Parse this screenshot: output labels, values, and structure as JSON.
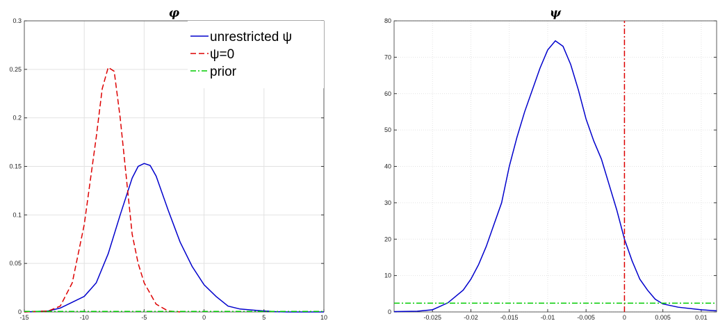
{
  "chart_data": [
    {
      "type": "line",
      "title": "φ",
      "xlim": [
        -15,
        10
      ],
      "xticks": [
        -15,
        -10,
        -5,
        0,
        5,
        10
      ],
      "ylim": [
        0,
        0.3
      ],
      "yticks": [
        0,
        0.05,
        0.1,
        0.15,
        0.2,
        0.25,
        0.3
      ],
      "grid": true,
      "legend": "upper right",
      "series": [
        {
          "name": "unrestricted ψ",
          "color": "#0000cc",
          "line_style": "solid",
          "x": [
            -15,
            -13,
            -12,
            -11,
            -10,
            -9,
            -8,
            -7,
            -6,
            -5.5,
            -5,
            -4.5,
            -4,
            -3,
            -2,
            -1,
            0,
            1,
            2,
            3,
            4,
            5,
            6,
            7,
            10
          ],
          "values": [
            0,
            0.001,
            0.004,
            0.01,
            0.016,
            0.03,
            0.06,
            0.1,
            0.138,
            0.15,
            0.153,
            0.151,
            0.14,
            0.105,
            0.072,
            0.047,
            0.028,
            0.016,
            0.006,
            0.003,
            0.002,
            0.001,
            0.0003,
            0,
            0
          ]
        },
        {
          "name": "ψ=0",
          "color": "#dd0000",
          "line_style": "dashed",
          "x": [
            -15,
            -13,
            -12,
            -11,
            -10,
            -9,
            -8.5,
            -8,
            -7.5,
            -7,
            -6.5,
            -6,
            -5.5,
            -5,
            -4,
            -3,
            -2
          ],
          "values": [
            0,
            0.001,
            0.006,
            0.03,
            0.09,
            0.18,
            0.23,
            0.252,
            0.248,
            0.2,
            0.14,
            0.08,
            0.05,
            0.03,
            0.008,
            0.001,
            0
          ]
        },
        {
          "name": "prior",
          "color": "#00cc00",
          "line_style": "dashdot",
          "x": [
            -15,
            10
          ],
          "values": [
            0.0005,
            0.0005
          ]
        }
      ]
    },
    {
      "type": "line",
      "title": "ψ",
      "xlim": [
        -0.03,
        0.012
      ],
      "xticks": [
        -0.025,
        -0.02,
        -0.015,
        -0.01,
        -0.005,
        0,
        0.005,
        0.01
      ],
      "ylim": [
        0,
        80
      ],
      "yticks": [
        0,
        10,
        20,
        30,
        40,
        50,
        60,
        70,
        80
      ],
      "grid": true,
      "series": [
        {
          "color": "#0000cc",
          "line_style": "solid",
          "x": [
            -0.03,
            -0.027,
            -0.025,
            -0.023,
            -0.021,
            -0.02,
            -0.019,
            -0.018,
            -0.017,
            -0.016,
            -0.015,
            -0.014,
            -0.013,
            -0.012,
            -0.011,
            -0.01,
            -0.009,
            -0.008,
            -0.007,
            -0.006,
            -0.005,
            -0.004,
            -0.003,
            -0.002,
            -0.001,
            0,
            0.001,
            0.002,
            0.003,
            0.004,
            0.005,
            0.007,
            0.01,
            0.012
          ],
          "values": [
            0.1,
            0.2,
            0.6,
            2.5,
            6,
            9,
            13,
            18,
            24,
            30,
            40,
            48,
            55,
            61,
            67,
            72,
            74.5,
            73,
            68,
            61,
            53,
            47,
            42,
            35,
            28,
            20,
            14,
            9,
            6,
            3.5,
            2.2,
            1.3,
            0.6,
            0.3
          ]
        },
        {
          "color": "#dd0000",
          "line_style": "dashdot",
          "x": [
            0,
            0
          ],
          "values": [
            0,
            80
          ]
        },
        {
          "color": "#00cc00",
          "line_style": "dashdot",
          "x": [
            -0.03,
            0.012
          ],
          "values": [
            2.4,
            2.4
          ]
        }
      ]
    }
  ]
}
